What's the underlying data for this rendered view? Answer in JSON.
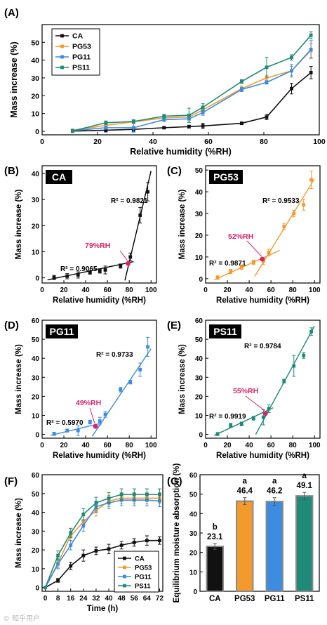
{
  "colors": {
    "CA": "#111111",
    "PG53": "#f39a2e",
    "PG11": "#3d8ce0",
    "PS11": "#1f8a78",
    "annotation": "#e0206a",
    "bar_edge": "#888888"
  },
  "chart_data": [
    {
      "panel": "(A)",
      "type": "line",
      "xlabel": "Relative humidity (%RH)",
      "ylabel": "Mass increase (%)",
      "xlim": [
        0,
        100
      ],
      "ylim": [
        -2,
        60
      ],
      "xticks": [
        0,
        20,
        40,
        60,
        80,
        100
      ],
      "yticks": [
        0,
        10,
        20,
        30,
        40,
        50
      ],
      "legend": "top-left",
      "x": [
        11,
        23,
        33,
        44,
        53,
        58,
        72,
        81,
        90,
        97
      ],
      "series": [
        {
          "name": "CA",
          "values": [
            0.1,
            0.6,
            1.1,
            2.0,
            2.6,
            3.0,
            4.5,
            8.0,
            24.0,
            33.0
          ],
          "err": [
            0.8,
            1.0,
            1.2,
            0.6,
            0.8,
            1.5,
            0.8,
            1.5,
            3.0,
            3.5
          ]
        },
        {
          "name": "PG53",
          "values": [
            0.5,
            3.3,
            5.3,
            7.5,
            8.0,
            12.0,
            24.0,
            30.0,
            34.0,
            45.5
          ],
          "err": [
            0.8,
            1.0,
            1.0,
            1.0,
            1.5,
            1.5,
            1.5,
            1.5,
            2.5,
            4.0
          ]
        },
        {
          "name": "PG11",
          "values": [
            0.3,
            2.0,
            2.0,
            6.5,
            7.0,
            10.5,
            23.5,
            27.5,
            34.0,
            46.0
          ],
          "err": [
            0.8,
            0.8,
            2.5,
            1.0,
            2.0,
            1.5,
            1.2,
            1.0,
            3.5,
            5.0
          ]
        },
        {
          "name": "PS11",
          "values": [
            0.2,
            4.8,
            5.5,
            8.5,
            9.0,
            13.5,
            28.0,
            36.0,
            41.5,
            54.0
          ],
          "err": [
            0.8,
            1.0,
            1.0,
            1.0,
            4.0,
            2.0,
            1.0,
            5.5,
            1.5,
            2.0
          ]
        }
      ]
    },
    {
      "panel": "(B)",
      "type": "scatter",
      "label": "CA",
      "xlabel": "Relative humidity (%RH)",
      "ylabel": "Mass increase (%)",
      "xlim": [
        0,
        105
      ],
      "ylim": [
        -2,
        43
      ],
      "xticks": [
        0,
        20,
        40,
        60,
        80,
        100
      ],
      "yticks": [
        0,
        10,
        20,
        30,
        40
      ],
      "x": [
        11,
        23,
        33,
        44,
        53,
        58,
        72,
        81,
        90,
        97
      ],
      "values": [
        0.1,
        0.6,
        1.1,
        2.0,
        2.6,
        3.0,
        4.5,
        8.0,
        24.0,
        33.0
      ],
      "err": [
        0.8,
        1.0,
        1.2,
        0.6,
        0.8,
        1.5,
        0.8,
        1.5,
        3.0,
        3.5
      ],
      "fit_low": {
        "x": [
          5,
          84
        ],
        "y": [
          -0.8,
          6.2
        ]
      },
      "fit_high": {
        "x": [
          76,
          100
        ],
        "y": [
          -1,
          41
        ]
      },
      "r2_low": "R² = 0.9065",
      "r2_high": "R² = 0.9821",
      "intersection": {
        "x": 79,
        "y": 5.5,
        "label": "79%RH"
      }
    },
    {
      "panel": "(C)",
      "type": "scatter",
      "label": "PG53",
      "xlabel": "Relative humidity (%RH)",
      "ylabel": "Mass increase (%)",
      "xlim": [
        0,
        105
      ],
      "ylim": [
        -2,
        52
      ],
      "xticks": [
        0,
        20,
        40,
        60,
        80,
        100
      ],
      "yticks": [
        0,
        10,
        20,
        30,
        40,
        50
      ],
      "x": [
        11,
        23,
        33,
        44,
        53,
        58,
        72,
        81,
        90,
        97
      ],
      "values": [
        0.5,
        3.3,
        5.3,
        7.5,
        8.0,
        12.0,
        24.0,
        30.0,
        34.0,
        45.5
      ],
      "err": [
        0.8,
        1.0,
        1.0,
        1.0,
        1.5,
        1.5,
        1.5,
        1.5,
        2.5,
        4.0
      ],
      "fit_low": {
        "x": [
          8,
          68
        ],
        "y": [
          -0.5,
          13.0
        ]
      },
      "fit_high": {
        "x": [
          45,
          100
        ],
        "y": [
          1,
          46
        ]
      },
      "r2_low": "R² = 0.9871",
      "r2_high": "R² = 0.9533",
      "intersection": {
        "x": 52,
        "y": 9.0,
        "label": "52%RH"
      }
    },
    {
      "panel": "(D)",
      "type": "scatter",
      "label": "PG11",
      "xlabel": "Relative humidity (%RH)",
      "ylabel": "Mass increase (%)",
      "xlim": [
        0,
        105
      ],
      "ylim": [
        -2,
        60
      ],
      "xticks": [
        0,
        20,
        40,
        60,
        80,
        100
      ],
      "yticks": [
        0,
        10,
        20,
        30,
        40,
        50,
        60
      ],
      "x": [
        11,
        23,
        33,
        44,
        53,
        58,
        72,
        81,
        90,
        97
      ],
      "values": [
        0.3,
        2.0,
        2.0,
        6.5,
        7.0,
        10.5,
        23.5,
        27.5,
        34.0,
        46.0
      ],
      "err": [
        0.8,
        0.8,
        2.5,
        1.0,
        2.0,
        1.5,
        1.2,
        1.0,
        3.5,
        5.0
      ],
      "fit_low": {
        "x": [
          8,
          55
        ],
        "y": [
          -0.5,
          6.0
        ]
      },
      "fit_high": {
        "x": [
          46,
          100
        ],
        "y": [
          -1,
          45
        ]
      },
      "r2_low": "R² = 0.5970",
      "r2_high": "R² = 0.9733",
      "intersection": {
        "x": 49,
        "y": 4.2,
        "label": "49%RH"
      }
    },
    {
      "panel": "(E)",
      "type": "scatter",
      "label": "PS11",
      "xlabel": "Relative humidity (%RH)",
      "ylabel": "Mass increase (%)",
      "xlim": [
        0,
        105
      ],
      "ylim": [
        -2,
        60
      ],
      "xticks": [
        0,
        20,
        40,
        60,
        80,
        100
      ],
      "yticks": [
        0,
        10,
        20,
        30,
        40,
        50,
        60
      ],
      "x": [
        11,
        23,
        33,
        44,
        53,
        58,
        72,
        81,
        90,
        97
      ],
      "values": [
        0.2,
        4.8,
        5.5,
        8.5,
        9.0,
        13.5,
        28.0,
        36.0,
        41.5,
        54.0
      ],
      "err": [
        0.8,
        1.0,
        1.0,
        1.0,
        4.0,
        2.0,
        1.0,
        5.5,
        1.5,
        2.0
      ],
      "fit_low": {
        "x": [
          8,
          62
        ],
        "y": [
          -0.5,
          14.0
        ]
      },
      "fit_high": {
        "x": [
          46,
          100
        ],
        "y": [
          0,
          57
        ]
      },
      "r2_low": "R² = 0.9919",
      "r2_high": "R² = 0.9784",
      "intersection": {
        "x": 55,
        "y": 11.0,
        "label": "55%RH"
      }
    },
    {
      "panel": "(F)",
      "type": "line",
      "xlabel": "Time (h)",
      "ylabel": "Mass increase (%)",
      "xlim": [
        -2,
        74
      ],
      "ylim": [
        -2,
        60
      ],
      "xticks": [
        0,
        8,
        16,
        24,
        32,
        40,
        48,
        56,
        64,
        72
      ],
      "yticks": [
        0,
        10,
        20,
        30,
        40,
        50,
        60
      ],
      "legend": "bottom-right",
      "x": [
        0,
        8,
        16,
        24,
        32,
        40,
        48,
        56,
        64,
        72
      ],
      "series": [
        {
          "name": "CA",
          "values": [
            0,
            3.8,
            11.5,
            17.0,
            19.5,
            20.5,
            22.5,
            24.0,
            25.0,
            25.0
          ],
          "err": [
            0.3,
            1.0,
            2.0,
            3.0,
            2.0,
            2.5,
            2.0,
            2.0,
            2.5,
            2.0
          ]
        },
        {
          "name": "PG53",
          "values": [
            0,
            13.0,
            27.5,
            35.0,
            41.0,
            46.0,
            47.5,
            47.5,
            47.5,
            47.5
          ],
          "err": [
            0.3,
            2.5,
            2.5,
            3.0,
            3.0,
            3.0,
            3.0,
            3.0,
            3.0,
            3.0
          ]
        },
        {
          "name": "PG11",
          "values": [
            0,
            12.5,
            22.5,
            33.0,
            43.0,
            45.0,
            46.5,
            46.5,
            46.5,
            46.0
          ],
          "err": [
            0.3,
            2.5,
            2.5,
            3.0,
            3.0,
            3.0,
            3.0,
            3.0,
            3.0,
            3.0
          ]
        },
        {
          "name": "PS11",
          "values": [
            0,
            17.0,
            29.0,
            39.0,
            45.0,
            47.5,
            49.5,
            49.5,
            49.5,
            49.5
          ],
          "err": [
            0.3,
            2.5,
            2.5,
            3.0,
            3.0,
            3.0,
            3.0,
            3.0,
            3.0,
            3.0
          ]
        }
      ]
    },
    {
      "panel": "(G)",
      "type": "bar",
      "ylabel": "Equilibrium moisture absorption (%)",
      "ylim": [
        0,
        60
      ],
      "yticks": [
        0,
        10,
        20,
        30,
        40,
        50,
        60
      ],
      "categories": [
        "CA",
        "PG53",
        "PG11",
        "PS11"
      ],
      "values": [
        23.1,
        46.4,
        46.2,
        49.1
      ],
      "value_labels": [
        "23.1",
        "46.4",
        "46.2",
        "49.1"
      ],
      "err": [
        1.5,
        1.8,
        2.0,
        1.8
      ],
      "letters": [
        "b",
        "a",
        "a",
        "a"
      ]
    }
  ],
  "watermark": "© 知乎用户"
}
